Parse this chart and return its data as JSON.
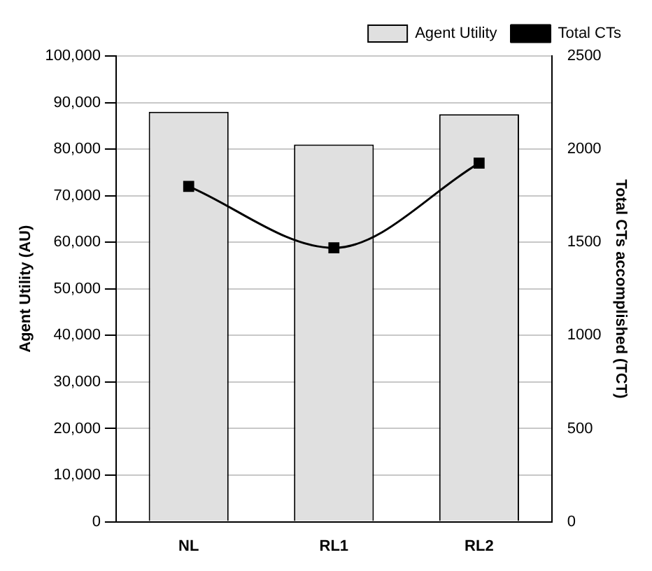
{
  "chart_data": {
    "type": "bar",
    "categories": [
      "NL",
      "RL1",
      "RL2"
    ],
    "series": [
      {
        "name": "Agent Utility",
        "color": "#e0e0e0",
        "values": [
          88000,
          81000,
          87500
        ]
      },
      {
        "name": "Total CTs",
        "type": "line",
        "axis": "y2",
        "color": "#000000",
        "marker": "square",
        "values": [
          1800,
          1470,
          1925
        ]
      }
    ],
    "ylabel": "Agent Utility (AU)",
    "y2label": "Total CTs accomplished (TCT)",
    "ylim": [
      0,
      100000
    ],
    "yticks": [
      0,
      {
        "value": 10000,
        "label": "10,000"
      },
      {
        "value": 20000,
        "label": "20,000"
      },
      {
        "value": 30000,
        "label": "30,000"
      },
      {
        "value": 40000,
        "label": "40,000"
      },
      {
        "value": 50000,
        "label": "50,000"
      },
      {
        "value": 60000,
        "label": "60,000"
      },
      {
        "value": 70000,
        "label": "70,000"
      },
      {
        "value": 80000,
        "label": "80,000"
      },
      {
        "value": 90000,
        "label": "90,000"
      },
      {
        "value": 100000,
        "label": "100,000"
      }
    ],
    "y2lim": [
      0,
      2500
    ],
    "y2ticks": [
      0,
      500,
      1000,
      1500,
      2000,
      2500
    ],
    "grid": "y",
    "legend": "top right"
  }
}
